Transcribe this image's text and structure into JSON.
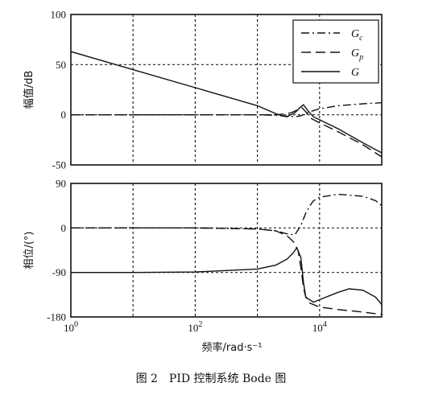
{
  "caption": "图 2　PID 控制系统 Bode 图",
  "chart_data": [
    {
      "type": "line",
      "xscale": "log",
      "xlim": [
        1,
        100000
      ],
      "ylim": [
        -50,
        100
      ],
      "ylabel": "幅值/dB",
      "yticks": [
        "100",
        "50",
        "0",
        "-50"
      ],
      "ytick_values": [
        100,
        50,
        0,
        -50
      ],
      "grid": true,
      "legend": {
        "placement": "top-right",
        "entries": [
          {
            "label": "Gc",
            "base": "G",
            "sub": "c",
            "style": "dashdot"
          },
          {
            "label": "Gp",
            "base": "G",
            "sub": "p",
            "style": "dashed"
          },
          {
            "label": "G",
            "base": "G",
            "sub": "",
            "style": "solid"
          }
        ]
      },
      "series": [
        {
          "name": "Gc",
          "style": "dashdot",
          "x": [
            1,
            100,
            1000,
            2000,
            3000,
            4000,
            5000,
            7000,
            10000,
            20000,
            50000,
            100000
          ],
          "y": [
            0,
            0,
            0,
            -0.5,
            -1.5,
            -2,
            -1,
            3,
            6,
            9,
            11,
            12
          ]
        },
        {
          "name": "Gp",
          "style": "dashed",
          "x": [
            1,
            100,
            1000,
            2000,
            2500,
            3500,
            4500,
            5200,
            6000,
            7000,
            10000,
            20000,
            50000,
            100000
          ],
          "y": [
            0,
            0,
            0,
            0,
            0.5,
            2,
            5,
            7,
            3,
            -3,
            -8,
            -17,
            -30,
            -42
          ]
        },
        {
          "name": "G",
          "style": "solid",
          "x": [
            1,
            10,
            100,
            1000,
            2000,
            2500,
            3000,
            4000,
            5000,
            5500,
            6500,
            8000,
            10000,
            20000,
            50000,
            100000
          ],
          "y": [
            63,
            45,
            27,
            9,
            1,
            -1,
            -2,
            2,
            8,
            10,
            4,
            -2,
            -5,
            -14,
            -28,
            -38
          ]
        }
      ]
    },
    {
      "type": "line",
      "xscale": "log",
      "xlim": [
        1,
        100000
      ],
      "ylim": [
        -180,
        90
      ],
      "ylabel": "相位/(°)",
      "yticks": [
        "90",
        "0",
        "-90",
        "-180"
      ],
      "ytick_values": [
        90,
        0,
        -90,
        -180
      ],
      "xticks": [
        "10^0",
        "10^2",
        "10^4"
      ],
      "xtick_bases": [
        "10",
        "10",
        "10"
      ],
      "xtick_exps": [
        "0",
        "2",
        "4"
      ],
      "xtick_values": [
        1,
        100,
        10000
      ],
      "xlabel": "频率/rad·s⁻¹",
      "grid": true,
      "series": [
        {
          "name": "Gc",
          "style": "dashdot",
          "x": [
            1,
            100,
            1000,
            2000,
            3000,
            4000,
            5000,
            6000,
            7000,
            8000,
            10000,
            20000,
            50000,
            80000,
            100000
          ],
          "y": [
            0,
            0,
            -2,
            -6,
            -12,
            -14,
            5,
            30,
            45,
            55,
            62,
            68,
            64,
            55,
            45
          ]
        },
        {
          "name": "Gp",
          "style": "dashed",
          "x": [
            1,
            100,
            1000,
            2000,
            3000,
            3800,
            4500,
            5000,
            5500,
            6000,
            7000,
            10000,
            20000,
            50000,
            100000
          ],
          "y": [
            0,
            0,
            -2,
            -6,
            -16,
            -28,
            -45,
            -80,
            -120,
            -140,
            -152,
            -160,
            -165,
            -170,
            -175
          ]
        },
        {
          "name": "G",
          "style": "solid",
          "x": [
            1,
            10,
            100,
            1000,
            2000,
            3000,
            3800,
            4300,
            5000,
            5500,
            6000,
            8000,
            10000,
            20000,
            30000,
            50000,
            80000,
            100000
          ],
          "y": [
            -90,
            -90,
            -89,
            -83,
            -75,
            -63,
            -50,
            -40,
            -60,
            -110,
            -140,
            -150,
            -145,
            -130,
            -123,
            -126,
            -140,
            -155
          ]
        }
      ]
    }
  ]
}
